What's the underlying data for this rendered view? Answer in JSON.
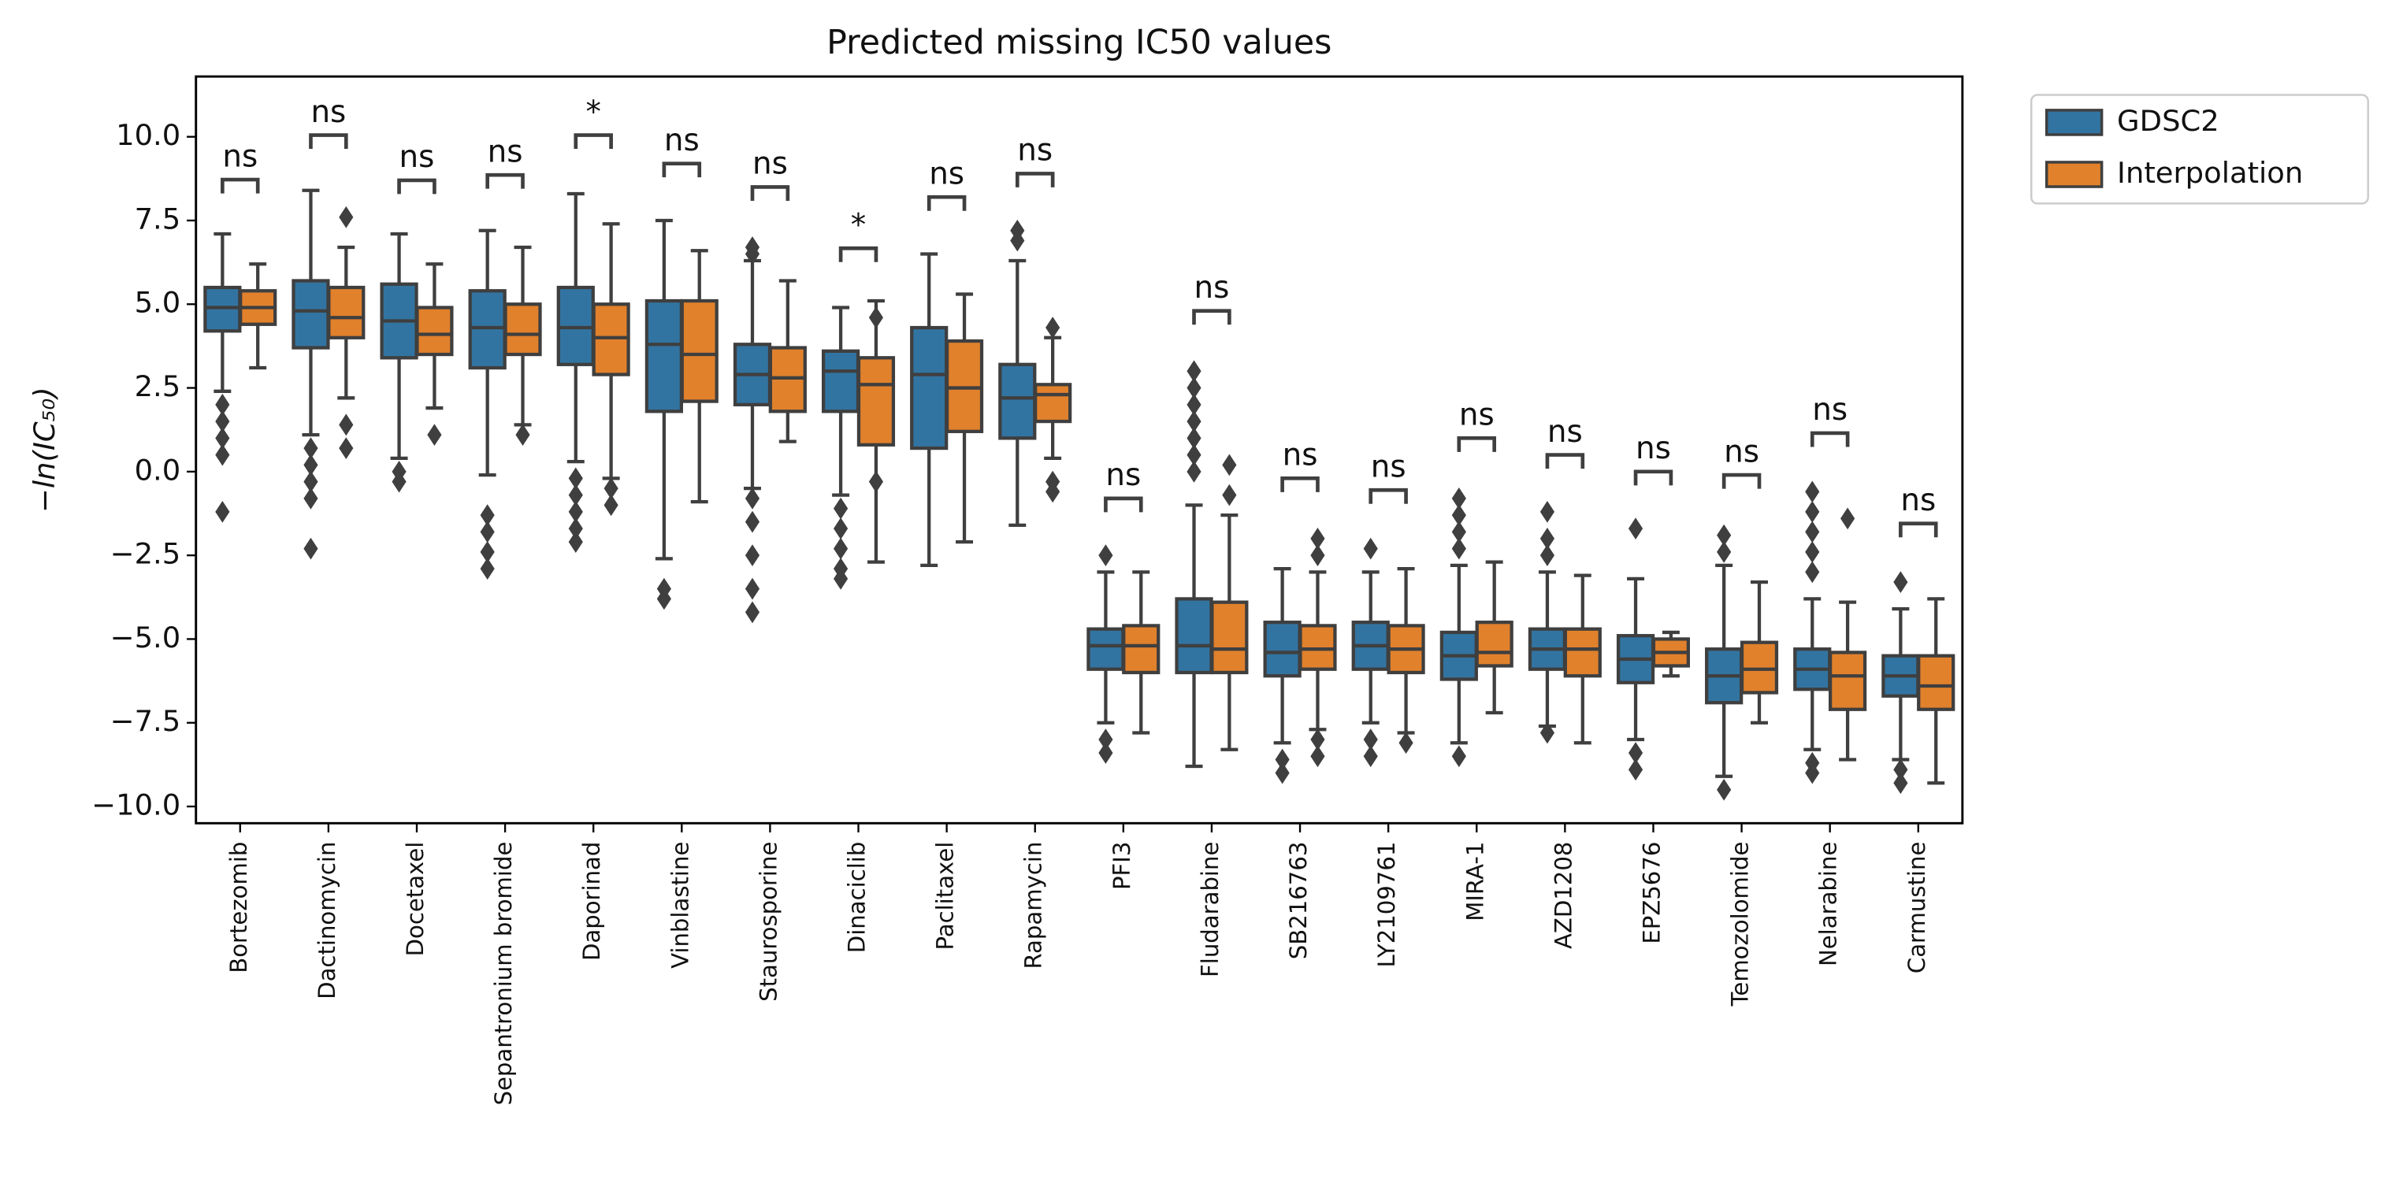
{
  "chart_data": {
    "type": "box",
    "title": "Predicted missing IC50 values",
    "y_label": "−ln(IC₅₀)",
    "categories": [
      "Bortezomib",
      "Dactinomycin",
      "Docetaxel",
      "Sepantronium bromide",
      "Daporinad",
      "Vinblastine",
      "Staurosporine",
      "Dinaciclib",
      "Paclitaxel",
      "Rapamycin",
      "PFI3",
      "Fludarabine",
      "SB216763",
      "LY2109761",
      "MIRA-1",
      "AZD1208",
      "EPZ5676",
      "Temozolomide",
      "Nelarabine",
      "Carmustine"
    ],
    "ylim": [
      -10.5,
      11.8
    ],
    "yticks": [
      {
        "value": 10,
        "label": "10.0"
      },
      7.5,
      {
        "value": 5,
        "label": "5.0"
      },
      2.5,
      {
        "value": 0,
        "label": "0.0"
      },
      {
        "value": -2.5,
        "label": "−2.5"
      },
      {
        "value": -5,
        "label": "−5.0"
      },
      {
        "value": -7.5,
        "label": "−7.5"
      },
      {
        "value": -10,
        "label": "−10.0"
      }
    ],
    "legend": "outside upper right",
    "series": [
      {
        "name": "GDSC2",
        "color": "#3274a1",
        "boxes": [
          {
            "whislo": 2.4,
            "q1": 4.2,
            "med": 4.9,
            "q3": 5.5,
            "whishi": 7.1,
            "fliers": [
              2.0,
              1.5,
              1.0,
              0.5,
              -1.2
            ]
          },
          {
            "whislo": 1.1,
            "q1": 3.7,
            "med": 4.8,
            "q3": 5.7,
            "whishi": 8.4,
            "fliers": [
              0.7,
              0.2,
              -0.3,
              -0.8,
              -2.3
            ]
          },
          {
            "whislo": 0.4,
            "q1": 3.4,
            "med": 4.5,
            "q3": 5.6,
            "whishi": 7.1,
            "fliers": [
              0.0,
              -0.3
            ]
          },
          {
            "whislo": -0.1,
            "q1": 3.1,
            "med": 4.3,
            "q3": 5.4,
            "whishi": 7.2,
            "fliers": [
              -1.3,
              -1.8,
              -2.4,
              -2.9
            ]
          },
          {
            "whislo": 0.3,
            "q1": 3.2,
            "med": 4.3,
            "q3": 5.5,
            "whishi": 8.3,
            "fliers": [
              -0.2,
              -0.7,
              -1.2,
              -1.7,
              -2.1
            ]
          },
          {
            "whislo": -2.6,
            "q1": 1.8,
            "med": 3.8,
            "q3": 5.1,
            "whishi": 7.5,
            "fliers": [
              -3.5,
              -3.8
            ]
          },
          {
            "whislo": -0.5,
            "q1": 2.0,
            "med": 2.9,
            "q3": 3.8,
            "whishi": 6.3,
            "fliers": [
              6.7,
              6.5,
              -0.8,
              -1.5,
              -2.5,
              -3.5,
              -4.2
            ]
          },
          {
            "whislo": -0.7,
            "q1": 1.8,
            "med": 3.0,
            "q3": 3.6,
            "whishi": 4.9,
            "fliers": [
              -1.1,
              -1.7,
              -2.3,
              -2.9,
              -3.2
            ]
          },
          {
            "whislo": -2.8,
            "q1": 0.7,
            "med": 2.9,
            "q3": 4.3,
            "whishi": 6.5,
            "fliers": []
          },
          {
            "whislo": -1.6,
            "q1": 1.0,
            "med": 2.2,
            "q3": 3.2,
            "whishi": 6.3,
            "fliers": [
              7.2,
              6.9
            ]
          },
          {
            "whislo": -7.5,
            "q1": -5.9,
            "med": -5.2,
            "q3": -4.7,
            "whishi": -3.0,
            "fliers": [
              -2.5,
              -8.0,
              -8.4
            ]
          },
          {
            "whislo": -8.8,
            "q1": -6.0,
            "med": -5.2,
            "q3": -3.8,
            "whishi": -1.0,
            "fliers": [
              0.0,
              0.5,
              1.0,
              1.5,
              2.0,
              2.5,
              3.0
            ]
          },
          {
            "whislo": -8.1,
            "q1": -6.1,
            "med": -5.4,
            "q3": -4.5,
            "whishi": -2.9,
            "fliers": [
              -8.6,
              -9.0
            ]
          },
          {
            "whislo": -7.5,
            "q1": -5.9,
            "med": -5.2,
            "q3": -4.5,
            "whishi": -3.0,
            "fliers": [
              -2.3,
              -8.0,
              -8.5
            ]
          },
          {
            "whislo": -8.1,
            "q1": -6.2,
            "med": -5.5,
            "q3": -4.8,
            "whishi": -2.8,
            "fliers": [
              -0.8,
              -1.3,
              -1.8,
              -2.3,
              -8.5
            ]
          },
          {
            "whislo": -7.6,
            "q1": -5.9,
            "med": -5.3,
            "q3": -4.7,
            "whishi": -3.0,
            "fliers": [
              -1.2,
              -2.0,
              -2.5,
              -7.8
            ]
          },
          {
            "whislo": -8.0,
            "q1": -6.3,
            "med": -5.6,
            "q3": -4.9,
            "whishi": -3.2,
            "fliers": [
              -1.7,
              -8.4,
              -8.9
            ]
          },
          {
            "whislo": -9.1,
            "q1": -6.9,
            "med": -6.1,
            "q3": -5.3,
            "whishi": -2.8,
            "fliers": [
              -1.9,
              -2.4,
              -9.5
            ]
          },
          {
            "whislo": -8.3,
            "q1": -6.5,
            "med": -5.9,
            "q3": -5.3,
            "whishi": -3.8,
            "fliers": [
              -0.6,
              -1.2,
              -1.8,
              -2.4,
              -3.0,
              -8.7,
              -9.0
            ]
          },
          {
            "whislo": -8.6,
            "q1": -6.7,
            "med": -6.1,
            "q3": -5.5,
            "whishi": -4.1,
            "fliers": [
              -3.3,
              -8.9,
              -9.3
            ]
          }
        ]
      },
      {
        "name": "Interpolation",
        "color": "#e1812c",
        "boxes": [
          {
            "whislo": 3.1,
            "q1": 4.4,
            "med": 4.9,
            "q3": 5.4,
            "whishi": 6.2,
            "fliers": []
          },
          {
            "whislo": 2.2,
            "q1": 4.0,
            "med": 4.6,
            "q3": 5.5,
            "whishi": 6.7,
            "fliers": [
              7.6,
              1.4,
              0.7
            ]
          },
          {
            "whislo": 1.9,
            "q1": 3.5,
            "med": 4.1,
            "q3": 4.9,
            "whishi": 6.2,
            "fliers": [
              1.1
            ]
          },
          {
            "whislo": 1.4,
            "q1": 3.5,
            "med": 4.1,
            "q3": 5.0,
            "whishi": 6.7,
            "fliers": [
              1.1
            ]
          },
          {
            "whislo": -0.2,
            "q1": 2.9,
            "med": 4.0,
            "q3": 5.0,
            "whishi": 7.4,
            "fliers": [
              -0.5,
              -1.0
            ]
          },
          {
            "whislo": -0.9,
            "q1": 2.1,
            "med": 3.5,
            "q3": 5.1,
            "whishi": 6.6,
            "fliers": []
          },
          {
            "whislo": 0.9,
            "q1": 1.8,
            "med": 2.8,
            "q3": 3.7,
            "whishi": 5.7,
            "fliers": []
          },
          {
            "whislo": -2.7,
            "q1": 0.8,
            "med": 2.6,
            "q3": 3.4,
            "whishi": 5.1,
            "fliers": [
              4.6,
              -0.3
            ]
          },
          {
            "whislo": -2.1,
            "q1": 1.2,
            "med": 2.5,
            "q3": 3.9,
            "whishi": 5.3,
            "fliers": []
          },
          {
            "whislo": 0.4,
            "q1": 1.5,
            "med": 2.3,
            "q3": 2.6,
            "whishi": 4.0,
            "fliers": [
              4.3,
              -0.3,
              -0.6
            ]
          },
          {
            "whislo": -7.8,
            "q1": -6.0,
            "med": -5.2,
            "q3": -4.6,
            "whishi": -3.0,
            "fliers": []
          },
          {
            "whislo": -8.3,
            "q1": -6.0,
            "med": -5.3,
            "q3": -3.9,
            "whishi": -1.3,
            "fliers": [
              -0.7,
              0.2
            ]
          },
          {
            "whislo": -7.7,
            "q1": -5.9,
            "med": -5.3,
            "q3": -4.6,
            "whishi": -3.0,
            "fliers": [
              -2.0,
              -2.5,
              -8.0,
              -8.5
            ]
          },
          {
            "whislo": -7.8,
            "q1": -6.0,
            "med": -5.3,
            "q3": -4.6,
            "whishi": -2.9,
            "fliers": [
              -8.1
            ]
          },
          {
            "whislo": -7.2,
            "q1": -5.8,
            "med": -5.4,
            "q3": -4.5,
            "whishi": -2.7,
            "fliers": []
          },
          {
            "whislo": -8.1,
            "q1": -6.1,
            "med": -5.3,
            "q3": -4.7,
            "whishi": -3.1,
            "fliers": []
          },
          {
            "whislo": -6.1,
            "q1": -5.8,
            "med": -5.4,
            "q3": -5.0,
            "whishi": -4.8,
            "fliers": []
          },
          {
            "whislo": -7.5,
            "q1": -6.6,
            "med": -5.9,
            "q3": -5.1,
            "whishi": -3.3,
            "fliers": []
          },
          {
            "whislo": -8.6,
            "q1": -7.1,
            "med": -6.1,
            "q3": -5.4,
            "whishi": -3.9,
            "fliers": [
              -1.4
            ]
          },
          {
            "whislo": -9.3,
            "q1": -7.1,
            "med": -6.4,
            "q3": -5.5,
            "whishi": -3.8,
            "fliers": []
          }
        ]
      }
    ],
    "annotations": [
      {
        "text": "ns",
        "y": 8.72
      },
      {
        "text": "ns",
        "y": 10.05
      },
      {
        "text": "ns",
        "y": 8.7
      },
      {
        "text": "ns",
        "y": 8.86
      },
      {
        "text": "*",
        "y": 10.05
      },
      {
        "text": "ns",
        "y": 9.2
      },
      {
        "text": "ns",
        "y": 8.5
      },
      {
        "text": "*",
        "y": 6.67
      },
      {
        "text": "ns",
        "y": 8.2
      },
      {
        "text": "ns",
        "y": 8.9
      },
      {
        "text": "ns",
        "y": -0.8
      },
      {
        "text": "ns",
        "y": 4.8
      },
      {
        "text": "ns",
        "y": -0.2
      },
      {
        "text": "ns",
        "y": -0.55
      },
      {
        "text": "ns",
        "y": 1.0
      },
      {
        "text": "ns",
        "y": 0.5
      },
      {
        "text": "ns",
        "y": 0.0
      },
      {
        "text": "ns",
        "y": -0.1
      },
      {
        "text": "ns",
        "y": 1.15
      },
      {
        "text": "ns",
        "y": -1.55
      }
    ]
  }
}
